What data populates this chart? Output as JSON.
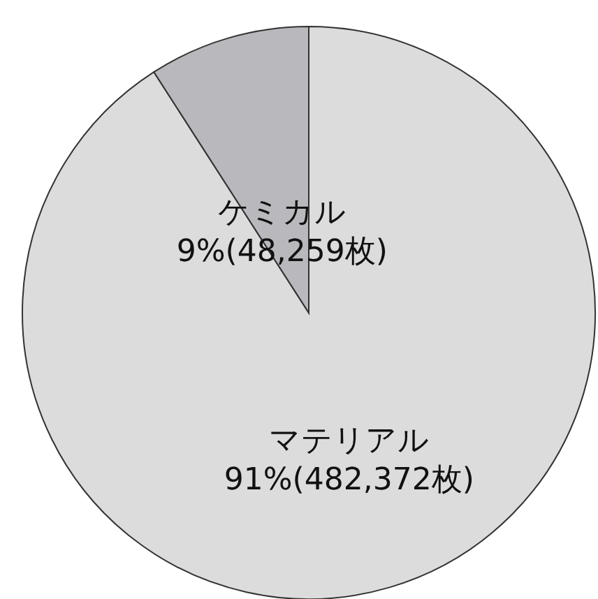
{
  "chart_data": {
    "type": "pie",
    "categories": [
      "マテリアル",
      "ケミカル"
    ],
    "values": [
      482372,
      48259
    ],
    "value_labels": [
      "91%(482,372枚)",
      "9%(48,259枚)"
    ],
    "colors": [
      "#dcdcdc",
      "#b9b9bd"
    ]
  }
}
